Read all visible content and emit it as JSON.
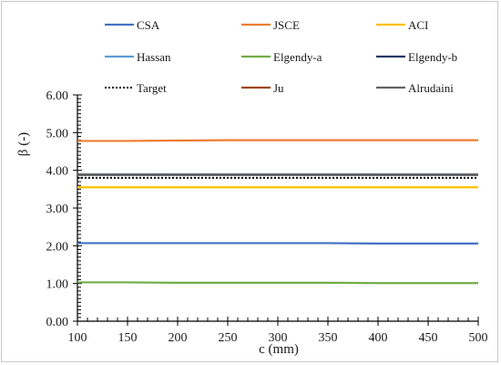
{
  "chart_data": {
    "type": "line",
    "title": "",
    "xlabel": "c (mm)",
    "ylabel": "β (-)",
    "xlim": [
      100,
      500
    ],
    "ylim": [
      0,
      6
    ],
    "x": [
      100,
      150,
      200,
      250,
      300,
      350,
      400,
      450,
      500
    ],
    "x_ticks": [
      "100",
      "150",
      "200",
      "250",
      "300",
      "350",
      "400",
      "450",
      "500"
    ],
    "y_ticks": [
      "0.00",
      "1.00",
      "2.00",
      "3.00",
      "4.00",
      "5.00",
      "6.00"
    ],
    "grid": false,
    "legend_position": "top",
    "series": [
      {
        "name": "CSA",
        "color": "#4472c4",
        "dash": "solid",
        "values": [
          2.07,
          2.07,
          2.07,
          2.07,
          2.07,
          2.07,
          2.06,
          2.06,
          2.06
        ]
      },
      {
        "name": "JSCE",
        "color": "#ed7d31",
        "dash": "solid",
        "values": [
          4.78,
          4.78,
          4.79,
          4.8,
          4.8,
          4.8,
          4.8,
          4.8,
          4.8
        ]
      },
      {
        "name": "ACI",
        "color": "#ffc000",
        "dash": "solid",
        "values": [
          3.55,
          3.55,
          3.55,
          3.55,
          3.55,
          3.55,
          3.55,
          3.55,
          3.55
        ]
      },
      {
        "name": "Hassan",
        "color": "#5b9bd5",
        "dash": "solid",
        "values": [
          3.88,
          3.88,
          3.88,
          3.88,
          3.88,
          3.88,
          3.88,
          3.88,
          3.88
        ]
      },
      {
        "name": "Elgendy-a",
        "color": "#70ad47",
        "dash": "solid",
        "values": [
          1.03,
          1.03,
          1.02,
          1.02,
          1.02,
          1.02,
          1.01,
          1.01,
          1.01
        ]
      },
      {
        "name": "Elgendy-b",
        "color": "#203864",
        "dash": "solid",
        "values": [
          3.89,
          3.89,
          3.89,
          3.89,
          3.89,
          3.89,
          3.89,
          3.89,
          3.89
        ]
      },
      {
        "name": "Target",
        "color": "#000000",
        "dash": "dotted",
        "values": [
          3.8,
          3.8,
          3.8,
          3.8,
          3.8,
          3.8,
          3.8,
          3.8,
          3.8
        ]
      },
      {
        "name": "Ju",
        "color": "#9e480e",
        "dash": "solid",
        "values": [
          3.88,
          3.88,
          3.88,
          3.88,
          3.88,
          3.88,
          3.88,
          3.88,
          3.88
        ]
      },
      {
        "name": "Alrudaini",
        "color": "#636363",
        "dash": "solid",
        "values": [
          3.88,
          3.88,
          3.88,
          3.88,
          3.88,
          3.88,
          3.88,
          3.88,
          3.88
        ]
      }
    ]
  }
}
